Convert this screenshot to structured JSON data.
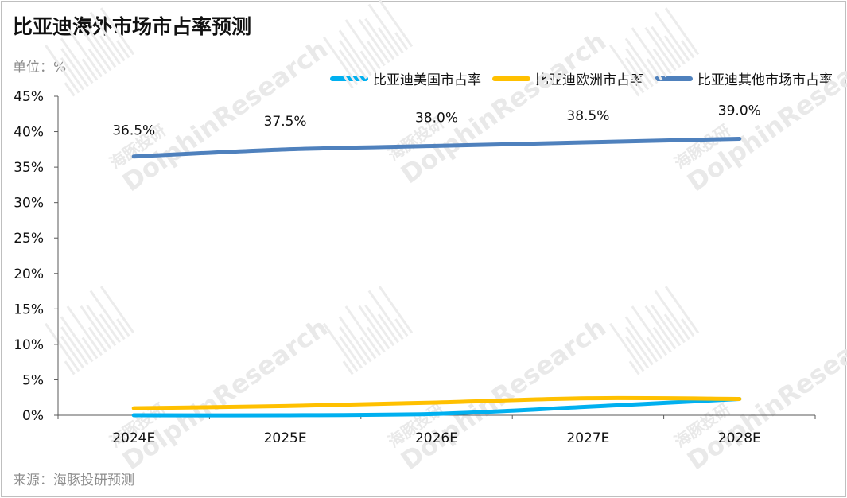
{
  "title": "比亚迪海外市场市占率预测",
  "unit_label": "单位：%",
  "source_label": "来源：海豚投研预测",
  "watermark": {
    "cn": "海豚投研",
    "en": "DolphinResearch"
  },
  "legend": [
    {
      "name": "比亚迪美国市占率",
      "color": "#00b0f0"
    },
    {
      "name": "比亚迪欧洲市占率",
      "color": "#ffc000"
    },
    {
      "name": "比亚迪其他市场市占率",
      "color": "#4f81bd"
    }
  ],
  "chart_data": {
    "type": "line",
    "x": [
      "2024E",
      "2025E",
      "2026E",
      "2027E",
      "2028E"
    ],
    "ylim": [
      0,
      45
    ],
    "yticks": [
      "0%",
      "5%",
      "10%",
      "15%",
      "20%",
      "25%",
      "30%",
      "35%",
      "40%",
      "45%"
    ],
    "series": [
      {
        "name": "比亚迪美国市占率",
        "color": "#00b0f0",
        "values": [
          0,
          0,
          0.2,
          1.2,
          2.3
        ]
      },
      {
        "name": "比亚迪欧洲市占率",
        "color": "#ffc000",
        "values": [
          1.0,
          1.3,
          1.8,
          2.4,
          2.3
        ]
      },
      {
        "name": "比亚迪其他市场市占率",
        "color": "#4f81bd",
        "values": [
          36.5,
          37.5,
          38.0,
          38.5,
          39.0
        ],
        "data_labels": [
          "36.5%",
          "37.5%",
          "38.0%",
          "38.5%",
          "39.0%"
        ]
      }
    ],
    "grid": false,
    "legend_position": "top-right"
  }
}
